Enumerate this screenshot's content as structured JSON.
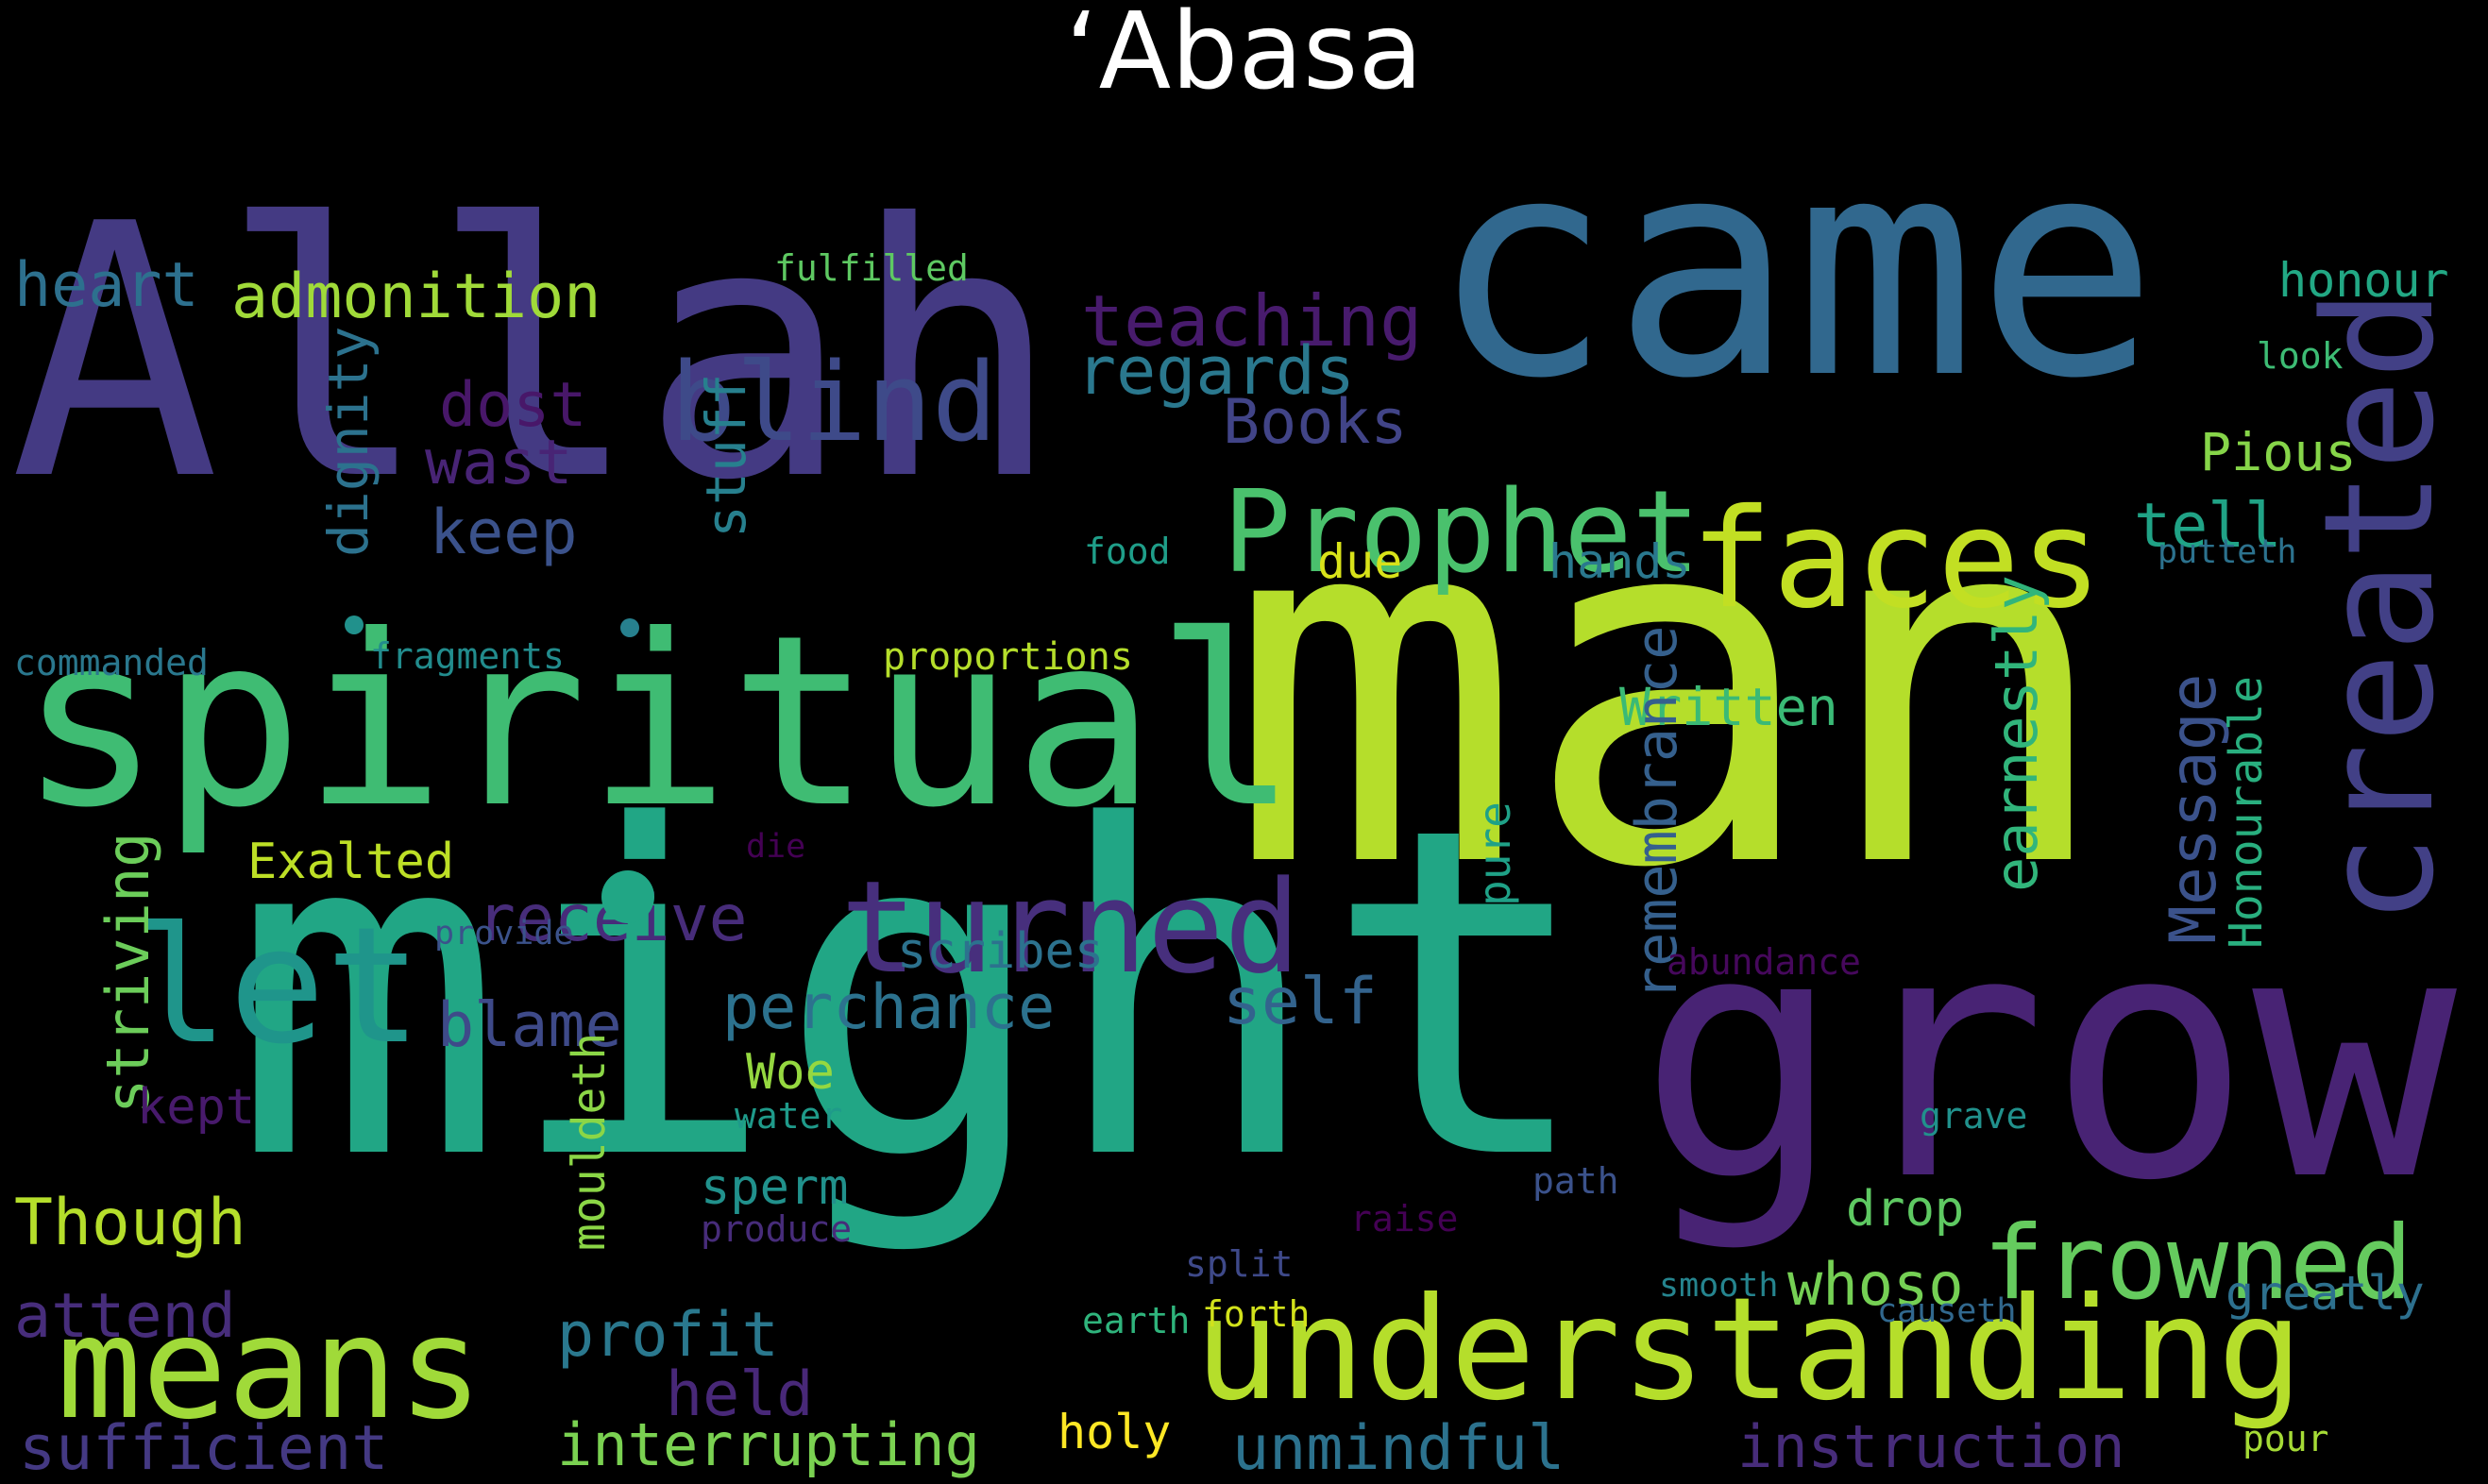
{
  "title": "‘Abasa",
  "words": [
    {
      "text": "Allah",
      "color": "#443a83"
    },
    {
      "text": "came",
      "color": "#31688e"
    },
    {
      "text": "man",
      "color": "#b5de2b"
    },
    {
      "text": "might",
      "color": "#21a685"
    },
    {
      "text": "spiritual",
      "color": "#3fbc73"
    },
    {
      "text": "grow",
      "color": "#482374"
    },
    {
      "text": "created",
      "color": "#424086"
    },
    {
      "text": "understanding",
      "color": "#b5de2b"
    },
    {
      "text": "means",
      "color": "#a0da39"
    },
    {
      "text": "let",
      "color": "#1f958b"
    },
    {
      "text": "faces",
      "color": "#c2df23"
    },
    {
      "text": "Prophet",
      "color": "#4ac16d"
    },
    {
      "text": "blind",
      "color": "#3e4a89"
    },
    {
      "text": "turned",
      "color": "#472f7d"
    },
    {
      "text": "frowned",
      "color": "#65cb5e"
    },
    {
      "text": "teaching",
      "color": "#481b6d"
    },
    {
      "text": "regards",
      "color": "#2a788e"
    },
    {
      "text": "admonition",
      "color": "#a0da39"
    },
    {
      "text": "heart",
      "color": "#2d708e"
    },
    {
      "text": "Books",
      "color": "#414487"
    },
    {
      "text": "dost",
      "color": "#481769"
    },
    {
      "text": "wast",
      "color": "#482475"
    },
    {
      "text": "keep",
      "color": "#3b528b"
    },
    {
      "text": "dignity",
      "color": "#2c728e"
    },
    {
      "text": "stuff",
      "color": "#27808e"
    },
    {
      "text": "tell",
      "color": "#20a386"
    },
    {
      "text": "honour",
      "color": "#22a884"
    },
    {
      "text": "Pious",
      "color": "#86d549"
    },
    {
      "text": "hands",
      "color": "#2a788e"
    },
    {
      "text": "due",
      "color": "#d8e219"
    },
    {
      "text": "food",
      "color": "#1f9e89"
    },
    {
      "text": "look",
      "color": "#3dbc74"
    },
    {
      "text": "putteth",
      "color": "#2c728e"
    },
    {
      "text": "fulfilled",
      "color": "#5ec962"
    },
    {
      "text": "commanded",
      "color": "#2a788e"
    },
    {
      "text": "fragments",
      "color": "#228c8d"
    },
    {
      "text": "proportions",
      "color": "#b5de2b"
    },
    {
      "text": "Written",
      "color": "#3aba76"
    },
    {
      "text": "remembrance",
      "color": "#35608d"
    },
    {
      "text": "earnestly",
      "color": "#31b57b"
    },
    {
      "text": "Message",
      "color": "#3b528b"
    },
    {
      "text": "Honourable",
      "color": "#29af7f"
    },
    {
      "text": "Exalted",
      "color": "#bddf26"
    },
    {
      "text": "receive",
      "color": "#472c7a"
    },
    {
      "text": "striving",
      "color": "#6ccd5a"
    },
    {
      "text": "die",
      "color": "#440154"
    },
    {
      "text": "provide",
      "color": "#3b528b"
    },
    {
      "text": "pure",
      "color": "#1fa187"
    },
    {
      "text": "abundance",
      "color": "#46085c"
    },
    {
      "text": "scribes",
      "color": "#2c728e"
    },
    {
      "text": "self",
      "color": "#33638d"
    },
    {
      "text": "perchance",
      "color": "#2c728e"
    },
    {
      "text": "blame",
      "color": "#3e4a89"
    },
    {
      "text": "Woe",
      "color": "#95d840"
    },
    {
      "text": "kept",
      "color": "#481a6c"
    },
    {
      "text": "mouldeth",
      "color": "#8bd646"
    },
    {
      "text": "water",
      "color": "#1f9a8a"
    },
    {
      "text": "grave",
      "color": "#21918c"
    },
    {
      "text": "Though",
      "color": "#b5de2b"
    },
    {
      "text": "sperm",
      "color": "#21918c"
    },
    {
      "text": "drop",
      "color": "#5ec962"
    },
    {
      "text": "whoso",
      "color": "#75d054"
    },
    {
      "text": "path",
      "color": "#3b528b"
    },
    {
      "text": "produce",
      "color": "#472c7a"
    },
    {
      "text": "raise",
      "color": "#440154"
    },
    {
      "text": "attend",
      "color": "#472d7b"
    },
    {
      "text": "split",
      "color": "#3e4989"
    },
    {
      "text": "smooth",
      "color": "#25848e"
    },
    {
      "text": "forth",
      "color": "#d2e21b"
    },
    {
      "text": "earth",
      "color": "#2fb47c"
    },
    {
      "text": "causeth",
      "color": "#31688e"
    },
    {
      "text": "greatly",
      "color": "#2d708e"
    },
    {
      "text": "profit",
      "color": "#2a788e"
    },
    {
      "text": "held",
      "color": "#482878"
    },
    {
      "text": "sufficient",
      "color": "#443983"
    },
    {
      "text": "interrupting",
      "color": "#7ad151"
    },
    {
      "text": "holy",
      "color": "#fde725"
    },
    {
      "text": "unmindful",
      "color": "#2c728e"
    },
    {
      "text": "instruction",
      "color": "#472c7a"
    },
    {
      "text": "pour",
      "color": "#a5db36"
    }
  ]
}
